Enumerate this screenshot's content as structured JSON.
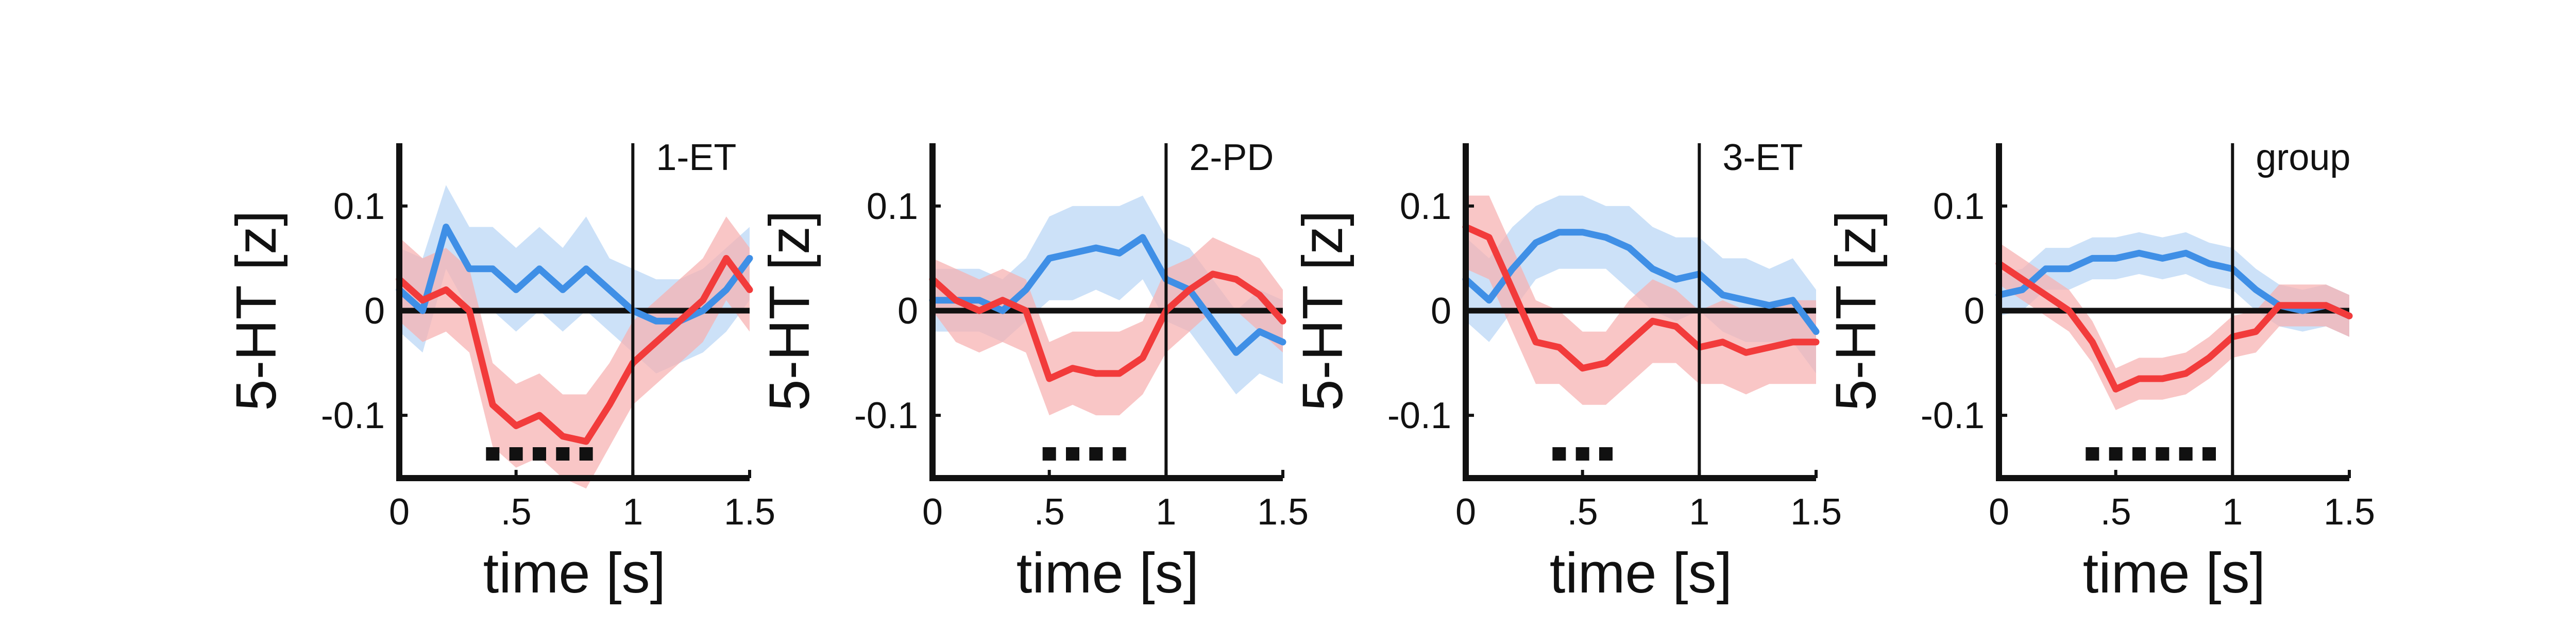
{
  "colors": {
    "blue": "#3f8fe6",
    "blue_band": "#b9d6f5",
    "red": "#f23b3b",
    "red_band": "#f7b0b0",
    "axis": "#111111"
  },
  "chart_data": [
    {
      "type": "line",
      "title": "1-ET",
      "xlabel": "time [s]",
      "ylabel": "5-HT [z]",
      "xlim": [
        0,
        1.5
      ],
      "ylim": [
        -0.16,
        0.16
      ],
      "xticks": [
        "0",
        ".5",
        "1",
        "1.5"
      ],
      "yticks": [
        "0.1",
        "0",
        "-0.1"
      ],
      "event_line_x": 1,
      "significance_markers_x": [
        0.4,
        0.5,
        0.6,
        0.7,
        0.8
      ],
      "x": [
        0,
        0.1,
        0.2,
        0.3,
        0.4,
        0.5,
        0.6,
        0.7,
        0.8,
        0.9,
        1.0,
        1.1,
        1.2,
        1.3,
        1.4,
        1.5
      ],
      "series": [
        {
          "color": "blue",
          "values": [
            0.02,
            0.0,
            0.08,
            0.04,
            0.04,
            0.02,
            0.04,
            0.02,
            0.04,
            0.02,
            0.0,
            -0.01,
            -0.01,
            0.0,
            0.02,
            0.05
          ],
          "upper": [
            0.06,
            0.05,
            0.12,
            0.08,
            0.08,
            0.06,
            0.08,
            0.06,
            0.09,
            0.05,
            0.04,
            0.03,
            0.03,
            0.04,
            0.06,
            0.08
          ],
          "lower": [
            -0.02,
            -0.04,
            0.04,
            0.0,
            0.0,
            -0.02,
            0.0,
            -0.02,
            0.0,
            -0.02,
            -0.04,
            -0.06,
            -0.05,
            -0.04,
            -0.02,
            0.01
          ]
        },
        {
          "color": "red",
          "values": [
            0.03,
            0.01,
            0.02,
            0.0,
            -0.09,
            -0.11,
            -0.1,
            -0.12,
            -0.125,
            -0.09,
            -0.05,
            -0.03,
            -0.01,
            0.01,
            0.05,
            0.02
          ],
          "upper": [
            0.07,
            0.05,
            0.06,
            0.04,
            -0.05,
            -0.07,
            -0.06,
            -0.08,
            -0.08,
            -0.05,
            -0.01,
            0.01,
            0.03,
            0.05,
            0.09,
            0.06
          ],
          "lower": [
            -0.01,
            -0.03,
            -0.02,
            -0.04,
            -0.13,
            -0.15,
            -0.14,
            -0.16,
            -0.17,
            -0.13,
            -0.09,
            -0.07,
            -0.05,
            -0.03,
            0.01,
            -0.02
          ]
        }
      ]
    },
    {
      "type": "line",
      "title": "2-PD",
      "xlabel": "time [s]",
      "ylabel": "5-HT [z]",
      "xlim": [
        0,
        1.5
      ],
      "ylim": [
        -0.16,
        0.16
      ],
      "xticks": [
        "0",
        ".5",
        "1",
        "1.5"
      ],
      "yticks": [
        "0.1",
        "0",
        "-0.1"
      ],
      "event_line_x": 1,
      "significance_markers_x": [
        0.5,
        0.6,
        0.7,
        0.8
      ],
      "x": [
        0,
        0.1,
        0.2,
        0.3,
        0.4,
        0.5,
        0.6,
        0.7,
        0.8,
        0.9,
        1.0,
        1.1,
        1.2,
        1.3,
        1.4,
        1.5
      ],
      "series": [
        {
          "color": "blue",
          "values": [
            0.01,
            0.01,
            0.01,
            0.0,
            0.02,
            0.05,
            0.055,
            0.06,
            0.055,
            0.07,
            0.03,
            0.02,
            -0.01,
            -0.04,
            -0.02,
            -0.03
          ],
          "upper": [
            0.04,
            0.04,
            0.04,
            0.03,
            0.05,
            0.09,
            0.1,
            0.1,
            0.1,
            0.11,
            0.07,
            0.06,
            0.03,
            0.0,
            0.02,
            0.01
          ],
          "lower": [
            -0.02,
            -0.02,
            -0.02,
            -0.03,
            -0.01,
            0.01,
            0.01,
            0.02,
            0.01,
            0.03,
            -0.01,
            -0.02,
            -0.05,
            -0.08,
            -0.06,
            -0.07
          ]
        },
        {
          "color": "red",
          "values": [
            0.03,
            0.01,
            0.0,
            0.01,
            0.0,
            -0.065,
            -0.055,
            -0.06,
            -0.06,
            -0.045,
            0.0,
            0.02,
            0.035,
            0.03,
            0.015,
            -0.01
          ],
          "upper": [
            0.05,
            0.04,
            0.03,
            0.04,
            0.03,
            -0.03,
            -0.02,
            -0.02,
            -0.02,
            -0.01,
            0.04,
            0.05,
            0.07,
            0.06,
            0.05,
            0.02
          ],
          "lower": [
            0.0,
            -0.03,
            -0.04,
            -0.03,
            -0.04,
            -0.1,
            -0.09,
            -0.1,
            -0.1,
            -0.08,
            -0.04,
            -0.02,
            0.0,
            0.0,
            -0.02,
            -0.04
          ]
        }
      ]
    },
    {
      "type": "line",
      "title": "3-ET",
      "xlabel": "time [s]",
      "ylabel": "5-HT [z]",
      "xlim": [
        0,
        1.5
      ],
      "ylim": [
        -0.16,
        0.16
      ],
      "xticks": [
        "0",
        ".5",
        "1",
        "1.5"
      ],
      "yticks": [
        "0.1",
        "0",
        "-0.1"
      ],
      "event_line_x": 1,
      "significance_markers_x": [
        0.4,
        0.5,
        0.6
      ],
      "x": [
        0,
        0.1,
        0.2,
        0.3,
        0.4,
        0.5,
        0.6,
        0.7,
        0.8,
        0.9,
        1.0,
        1.1,
        1.2,
        1.3,
        1.4,
        1.5
      ],
      "series": [
        {
          "color": "blue",
          "values": [
            0.03,
            0.01,
            0.04,
            0.065,
            0.075,
            0.075,
            0.07,
            0.06,
            0.04,
            0.03,
            0.035,
            0.015,
            0.01,
            0.005,
            0.01,
            -0.02
          ],
          "upper": [
            0.07,
            0.05,
            0.08,
            0.1,
            0.11,
            0.11,
            0.1,
            0.1,
            0.08,
            0.07,
            0.07,
            0.05,
            0.05,
            0.04,
            0.05,
            0.02
          ],
          "lower": [
            -0.01,
            -0.03,
            0.0,
            0.03,
            0.04,
            0.04,
            0.04,
            0.02,
            0.0,
            -0.01,
            0.0,
            -0.02,
            -0.03,
            -0.03,
            -0.03,
            -0.06
          ]
        },
        {
          "color": "red",
          "values": [
            0.08,
            0.07,
            0.02,
            -0.03,
            -0.035,
            -0.055,
            -0.05,
            -0.03,
            -0.01,
            -0.015,
            -0.035,
            -0.03,
            -0.04,
            -0.035,
            -0.03,
            -0.03
          ],
          "upper": [
            0.11,
            0.11,
            0.06,
            0.01,
            0.0,
            -0.02,
            -0.02,
            0.01,
            0.03,
            0.02,
            0.0,
            0.01,
            0.0,
            0.0,
            0.01,
            0.01
          ],
          "lower": [
            0.04,
            0.03,
            -0.02,
            -0.07,
            -0.07,
            -0.09,
            -0.09,
            -0.07,
            -0.05,
            -0.05,
            -0.07,
            -0.07,
            -0.08,
            -0.07,
            -0.07,
            -0.07
          ]
        }
      ]
    },
    {
      "type": "line",
      "title": "group",
      "xlabel": "time [s]",
      "ylabel": "5-HT [z]",
      "xlim": [
        0,
        1.5
      ],
      "ylim": [
        -0.16,
        0.16
      ],
      "xticks": [
        "0",
        ".5",
        "1",
        "1.5"
      ],
      "yticks": [
        "0.1",
        "0",
        "-0.1"
      ],
      "event_line_x": 1,
      "significance_markers_x": [
        0.4,
        0.5,
        0.6,
        0.7,
        0.8,
        0.9
      ],
      "x": [
        0,
        0.1,
        0.2,
        0.3,
        0.4,
        0.5,
        0.6,
        0.7,
        0.8,
        0.9,
        1.0,
        1.1,
        1.2,
        1.3,
        1.4,
        1.5
      ],
      "series": [
        {
          "color": "blue",
          "values": [
            0.015,
            0.02,
            0.04,
            0.04,
            0.05,
            0.05,
            0.055,
            0.05,
            0.055,
            0.045,
            0.04,
            0.02,
            0.005,
            0.0,
            0.005,
            -0.005
          ],
          "upper": [
            0.035,
            0.04,
            0.06,
            0.06,
            0.07,
            0.07,
            0.075,
            0.07,
            0.075,
            0.065,
            0.06,
            0.04,
            0.025,
            0.02,
            0.025,
            0.015
          ],
          "lower": [
            -0.005,
            0.0,
            0.02,
            0.02,
            0.03,
            0.03,
            0.035,
            0.03,
            0.035,
            0.025,
            0.02,
            0.0,
            -0.015,
            -0.02,
            -0.015,
            -0.025
          ]
        },
        {
          "color": "red",
          "values": [
            0.045,
            0.03,
            0.015,
            0.0,
            -0.03,
            -0.075,
            -0.065,
            -0.065,
            -0.06,
            -0.045,
            -0.025,
            -0.02,
            0.005,
            0.005,
            0.005,
            -0.005
          ],
          "upper": [
            0.065,
            0.05,
            0.035,
            0.02,
            -0.01,
            -0.055,
            -0.045,
            -0.045,
            -0.04,
            -0.025,
            -0.005,
            0.0,
            0.025,
            0.025,
            0.025,
            0.015
          ],
          "lower": [
            0.025,
            0.01,
            -0.005,
            -0.02,
            -0.05,
            -0.095,
            -0.085,
            -0.085,
            -0.08,
            -0.065,
            -0.045,
            -0.04,
            -0.015,
            -0.015,
            -0.015,
            -0.025
          ]
        }
      ]
    }
  ]
}
